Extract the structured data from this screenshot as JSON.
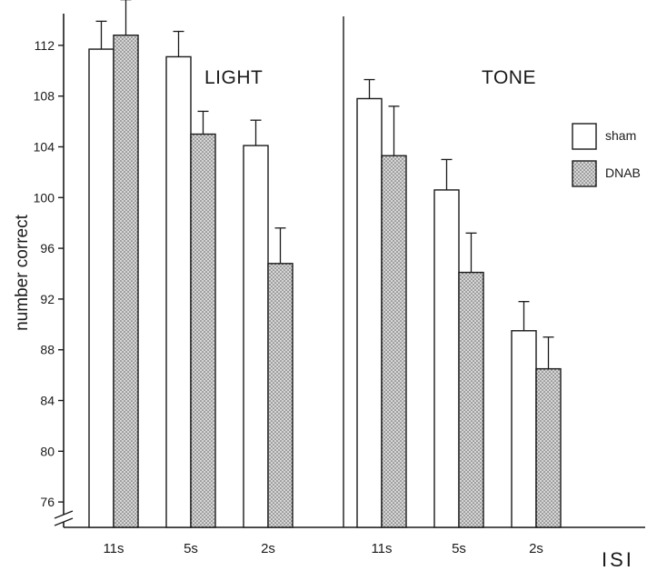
{
  "chart_data": {
    "type": "bar",
    "panels": [
      {
        "label": "LIGHT",
        "categories": [
          "11s",
          "5s",
          "2s"
        ],
        "series": [
          {
            "name": "sham",
            "values": [
              111.7,
              111.1,
              104.1
            ],
            "errors": [
              2.2,
              2.0,
              2.0
            ]
          },
          {
            "name": "DNAB",
            "values": [
              112.8,
              105.0,
              94.8
            ],
            "errors": [
              2.8,
              1.8,
              2.8
            ]
          }
        ]
      },
      {
        "label": "TONE",
        "categories": [
          "11s",
          "5s",
          "2s"
        ],
        "series": [
          {
            "name": "sham",
            "values": [
              107.8,
              100.6,
              89.5
            ],
            "errors": [
              1.5,
              2.4,
              2.3
            ]
          },
          {
            "name": "DNAB",
            "values": [
              103.3,
              94.1,
              86.5
            ],
            "errors": [
              3.9,
              3.1,
              2.5
            ]
          }
        ]
      }
    ],
    "legend": [
      {
        "name": "sham",
        "fill": "#ffffff"
      },
      {
        "name": "DNAB",
        "fill": "#c9c9c9"
      }
    ],
    "legend_position": "top-right",
    "ylabel": "number correct",
    "xlabel": "ISI",
    "yticks": [
      76,
      80,
      84,
      88,
      92,
      96,
      100,
      104,
      108,
      112
    ],
    "ylim": [
      74,
      114.5
    ],
    "axis_break": true,
    "grid": false,
    "colors": {
      "ink": "#1a1a1a",
      "dnab_fill": "#c9c9c9",
      "sham_fill": "#ffffff"
    }
  }
}
